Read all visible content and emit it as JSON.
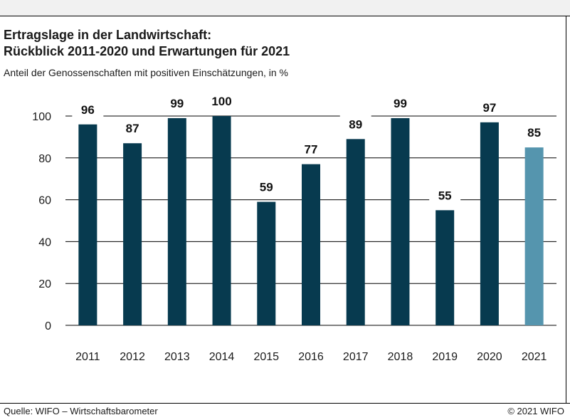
{
  "header": {
    "title_line1": "Ertragslage in der Landwirtschaft:",
    "title_line2": "Rückblick 2011-2020 und Erwartungen für 2021",
    "subtitle": "Anteil der Genossenschaften mit positiven Einschätzungen, in %"
  },
  "footer": {
    "source": "Quelle: WIFO – Wirtschaftsbarometer",
    "copyright": "© 2021 WIFO"
  },
  "colors": {
    "bar_actual": "#073a4f",
    "bar_expectation": "#5595ae",
    "grid": "#000000"
  },
  "chart_data": {
    "type": "bar",
    "title": "Ertragslage in der Landwirtschaft: Rückblick 2011-2020 und Erwartungen für 2021",
    "subtitle": "Anteil der Genossenschaften mit positiven Einschätzungen, in %",
    "categories": [
      "2011",
      "2012",
      "2013",
      "2014",
      "2015",
      "2016",
      "2017",
      "2018",
      "2019",
      "2020",
      "2021"
    ],
    "values": [
      96,
      87,
      99,
      100,
      59,
      77,
      89,
      99,
      55,
      97,
      85
    ],
    "highlight": [
      false,
      false,
      false,
      false,
      false,
      false,
      false,
      false,
      false,
      false,
      true
    ],
    "ylim": [
      0,
      100
    ],
    "yticks": [
      0,
      20,
      40,
      60,
      80,
      100
    ],
    "grid": true,
    "legend": "none"
  }
}
